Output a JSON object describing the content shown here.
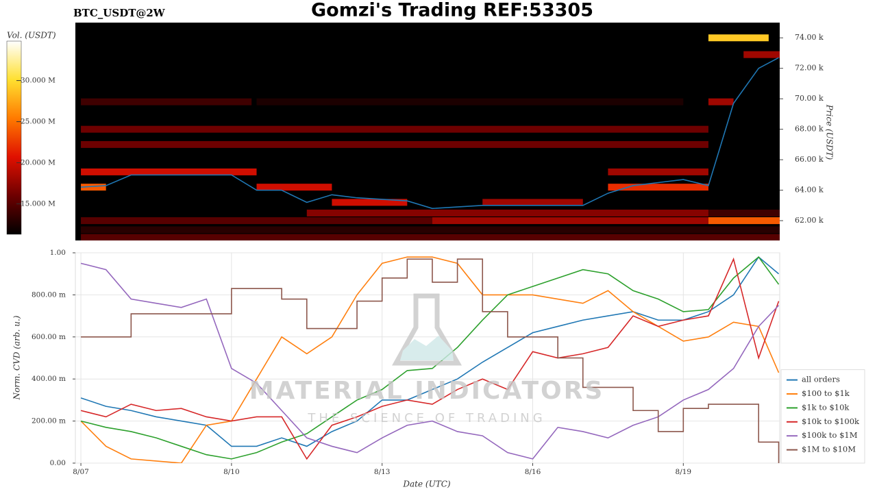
{
  "title": "Gomzi's Trading REF:53305",
  "watermark": {
    "title": "MATERIAL INDICATORS",
    "subtitle": "THE SCIENCE OF TRADING"
  },
  "chart_data": [
    {
      "type": "heatmap",
      "title": "BTC_USDT@2W",
      "colorbar_label": "Vol. (USDT)",
      "colorscale": [
        "#000000",
        "#6e0000",
        "#e01000",
        "#ff7a00",
        "#ffe030",
        "#ffffff"
      ],
      "vlim": [
        11300000,
        34800000
      ],
      "vticks": [
        {
          "value": 15000000,
          "label": "15.000 M"
        },
        {
          "value": 20000000,
          "label": "20.000 M"
        },
        {
          "value": 25000000,
          "label": "25.000 M"
        },
        {
          "value": 30000000,
          "label": "30.000 M"
        }
      ],
      "y2_label": "Price (USDT)",
      "y2lim": [
        60700,
        75000
      ],
      "y2ticks": [
        {
          "value": 62000,
          "label": "62.00 k"
        },
        {
          "value": 64000,
          "label": "64.00 k"
        },
        {
          "value": 66000,
          "label": "66.00 k"
        },
        {
          "value": 68000,
          "label": "68.00 k"
        },
        {
          "value": 70000,
          "label": "70.00 k"
        },
        {
          "value": 72000,
          "label": "72.00 k"
        },
        {
          "value": 74000,
          "label": "74.00 k"
        }
      ],
      "xlim": [
        6.89,
        20.92
      ],
      "levels": [
        {
          "price": 69800,
          "x": [
            7,
            10.4
          ],
          "volume": 14000000
        },
        {
          "price": 69800,
          "x": [
            10.5,
            19
          ],
          "volume": 12500000
        },
        {
          "price": 69800,
          "x": [
            19.5,
            20
          ],
          "volume": 18000000
        },
        {
          "price": 68000,
          "x": [
            7,
            19.5
          ],
          "volume": 16000000
        },
        {
          "price": 67000,
          "x": [
            7,
            19.5
          ],
          "volume": 16000000
        },
        {
          "price": 65200,
          "x": [
            7,
            10.5
          ],
          "volume": 20000000
        },
        {
          "price": 65200,
          "x": [
            17.5,
            19.5
          ],
          "volume": 18000000
        },
        {
          "price": 64200,
          "x": [
            7,
            7.5
          ],
          "volume": 24000000
        },
        {
          "price": 64200,
          "x": [
            10.5,
            12
          ],
          "volume": 20000000
        },
        {
          "price": 64200,
          "x": [
            17.5,
            19.5
          ],
          "volume": 22000000
        },
        {
          "price": 63200,
          "x": [
            12,
            13.5
          ],
          "volume": 20000000
        },
        {
          "price": 63200,
          "x": [
            15,
            17
          ],
          "volume": 18000000
        },
        {
          "price": 62500,
          "x": [
            11.5,
            19.5
          ],
          "volume": 17000000
        },
        {
          "price": 62500,
          "x": [
            19.5,
            20.92
          ],
          "volume": 14000000
        },
        {
          "price": 62000,
          "x": [
            7,
            14
          ],
          "volume": 15000000
        },
        {
          "price": 62000,
          "x": [
            14,
            19.5
          ],
          "volume": 18000000
        },
        {
          "price": 62000,
          "x": [
            19.5,
            20.92
          ],
          "volume": 24000000
        },
        {
          "price": 61400,
          "x": [
            7,
            20.92
          ],
          "volume": 13000000
        },
        {
          "price": 60900,
          "x": [
            7,
            20.92
          ],
          "volume": 15000000
        },
        {
          "price": 72900,
          "x": [
            20.2,
            20.92
          ],
          "volume": 18000000
        },
        {
          "price": 74000,
          "x": [
            19.5,
            20.7
          ],
          "volume": 29000000
        }
      ],
      "x": [
        7,
        7.5,
        8,
        8.5,
        9,
        9.5,
        10,
        10.5,
        11,
        11.5,
        12,
        12.5,
        13,
        13.5,
        14,
        14.5,
        15,
        15.5,
        16,
        16.5,
        17,
        17.5,
        18,
        18.5,
        19,
        19.5,
        20,
        20.5,
        20.9
      ],
      "line": {
        "color": "#1f77b4",
        "values": [
          64200,
          64300,
          65000,
          65000,
          65000,
          65000,
          65000,
          64000,
          64000,
          63200,
          63700,
          63500,
          63400,
          63300,
          62800,
          62900,
          63000,
          63000,
          63000,
          63000,
          63000,
          63800,
          64300,
          64500,
          64700,
          64300,
          69700,
          72000,
          72700
        ]
      }
    },
    {
      "type": "line",
      "xlabel": "Date (UTC)",
      "ylabel": "Norm. CVD (arb. u.)",
      "xlim": [
        6.89,
        20.92
      ],
      "xticks": [
        {
          "value": 7,
          "label": "8/07"
        },
        {
          "value": 10,
          "label": "8/10"
        },
        {
          "value": 13,
          "label": "8/13"
        },
        {
          "value": 16,
          "label": "8/16"
        },
        {
          "value": 19,
          "label": "8/19"
        }
      ],
      "ylim": [
        0,
        1
      ],
      "yticks": [
        {
          "value": 0,
          "label": "0.00"
        },
        {
          "value": 0.2,
          "label": "200.00 m"
        },
        {
          "value": 0.4,
          "label": "400.00 m"
        },
        {
          "value": 0.6,
          "label": "600.00 m"
        },
        {
          "value": 0.8,
          "label": "800.00 m"
        },
        {
          "value": 1,
          "label": "1.00"
        }
      ],
      "grid": true,
      "legend": "lower right",
      "x": [
        7,
        7.5,
        8,
        8.5,
        9,
        9.5,
        10,
        10.5,
        11,
        11.5,
        12,
        12.5,
        13,
        13.5,
        14,
        14.5,
        15,
        15.5,
        16,
        16.5,
        17,
        17.5,
        18,
        18.5,
        19,
        19.5,
        20,
        20.5,
        20.9
      ],
      "series": [
        {
          "name": "all orders",
          "color": "#1f77b4",
          "values": [
            0.31,
            0.27,
            0.25,
            0.22,
            0.2,
            0.18,
            0.08,
            0.08,
            0.12,
            0.08,
            0.15,
            0.2,
            0.3,
            0.3,
            0.35,
            0.4,
            0.48,
            0.55,
            0.62,
            0.65,
            0.68,
            0.7,
            0.72,
            0.68,
            0.68,
            0.72,
            0.8,
            0.98,
            0.9
          ]
        },
        {
          "name": "$100 to $1k",
          "color": "#ff7f0e",
          "values": [
            0.2,
            0.08,
            0.02,
            0.01,
            0.0,
            0.18,
            0.2,
            0.4,
            0.6,
            0.52,
            0.6,
            0.8,
            0.95,
            0.98,
            0.98,
            0.95,
            0.8,
            0.8,
            0.8,
            0.78,
            0.76,
            0.82,
            0.72,
            0.65,
            0.58,
            0.6,
            0.67,
            0.65,
            0.43
          ]
        },
        {
          "name": "$1k to $10k",
          "color": "#2ca02c",
          "values": [
            0.2,
            0.17,
            0.15,
            0.12,
            0.08,
            0.04,
            0.02,
            0.05,
            0.1,
            0.14,
            0.22,
            0.3,
            0.35,
            0.44,
            0.45,
            0.55,
            0.68,
            0.8,
            0.84,
            0.88,
            0.92,
            0.9,
            0.82,
            0.78,
            0.72,
            0.73,
            0.88,
            0.98,
            0.85
          ]
        },
        {
          "name": "$10k to $100k",
          "color": "#d62728",
          "values": [
            0.25,
            0.22,
            0.28,
            0.25,
            0.26,
            0.22,
            0.2,
            0.22,
            0.22,
            0.02,
            0.18,
            0.22,
            0.27,
            0.3,
            0.28,
            0.35,
            0.4,
            0.35,
            0.53,
            0.5,
            0.52,
            0.55,
            0.7,
            0.65,
            0.68,
            0.7,
            0.97,
            0.5,
            0.77
          ]
        },
        {
          "name": "$100k to $1M",
          "color": "#9467bd",
          "values": [
            0.95,
            0.92,
            0.78,
            0.76,
            0.74,
            0.78,
            0.45,
            0.38,
            0.25,
            0.12,
            0.08,
            0.05,
            0.12,
            0.18,
            0.2,
            0.15,
            0.13,
            0.05,
            0.02,
            0.17,
            0.15,
            0.12,
            0.18,
            0.22,
            0.3,
            0.35,
            0.45,
            0.65,
            0.75
          ]
        },
        {
          "name": "$1M to $10M",
          "color": "#8c564b",
          "step": true,
          "values": [
            0.6,
            0.6,
            0.71,
            0.71,
            0.71,
            0.71,
            0.83,
            0.83,
            0.78,
            0.64,
            0.64,
            0.77,
            0.88,
            0.97,
            0.86,
            0.97,
            0.72,
            0.6,
            0.6,
            0.5,
            0.36,
            0.36,
            0.25,
            0.15,
            0.26,
            0.28,
            0.28,
            0.1,
            0.0
          ]
        }
      ]
    }
  ]
}
